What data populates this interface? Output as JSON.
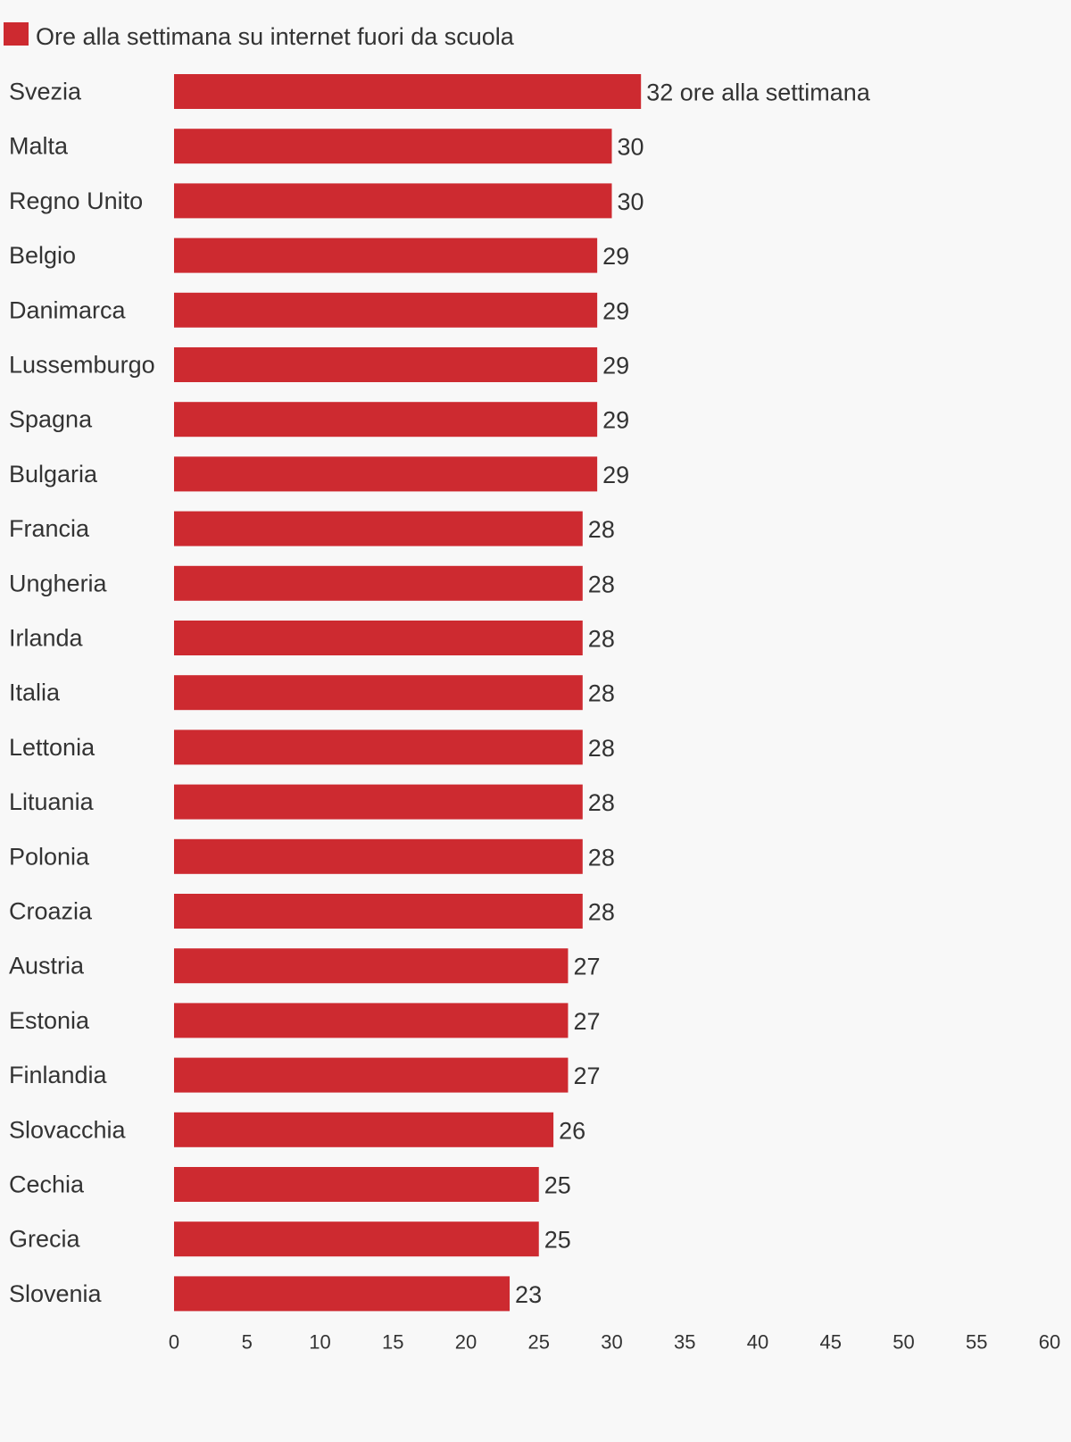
{
  "legend": {
    "label": "Ore alla settimana su internet fuori da scuola",
    "color": "#cd2a30"
  },
  "chart_data": {
    "type": "bar",
    "orientation": "horizontal",
    "categories": [
      "Svezia",
      "Malta",
      "Regno Unito",
      "Belgio",
      "Danimarca",
      "Lussemburgo",
      "Spagna",
      "Bulgaria",
      "Francia",
      "Ungheria",
      "Irlanda",
      "Italia",
      "Lettonia",
      "Lituania",
      "Polonia",
      "Croazia",
      "Austria",
      "Estonia",
      "Finlandia",
      "Slovacchia",
      "Cechia",
      "Grecia",
      "Slovenia"
    ],
    "series": [
      {
        "name": "Ore alla settimana su internet fuori da scuola",
        "values": [
          32,
          30,
          30,
          29,
          29,
          29,
          29,
          29,
          28,
          28,
          28,
          28,
          28,
          28,
          28,
          28,
          27,
          27,
          27,
          26,
          25,
          25,
          23
        ]
      }
    ],
    "data_labels": [
      "32 ore alla settimana",
      "30",
      "30",
      "29",
      "29",
      "29",
      "29",
      "29",
      "28",
      "28",
      "28",
      "28",
      "28",
      "28",
      "28",
      "28",
      "27",
      "27",
      "27",
      "26",
      "25",
      "25",
      "23"
    ],
    "xlim": [
      0,
      60
    ],
    "x_ticks": [
      0,
      5,
      10,
      15,
      20,
      25,
      30,
      35,
      40,
      45,
      50,
      55,
      60
    ],
    "grid": false,
    "legend_position": "top-left",
    "bar_color": "#cd2a30"
  }
}
